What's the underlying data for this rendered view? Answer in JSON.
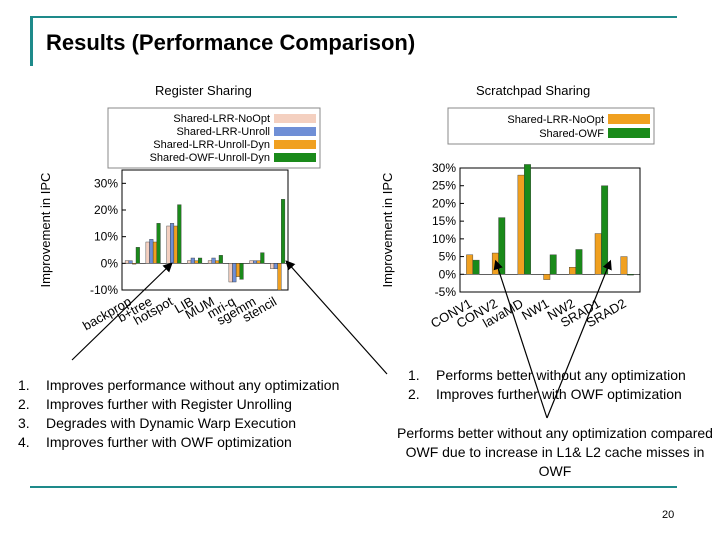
{
  "slide": {
    "title": "Results (Performance Comparison)",
    "page_number": "20",
    "accent_color": "#1e8a8a"
  },
  "left_panel": {
    "subtitle": "Register Sharing",
    "notes": [
      {
        "num": "1.",
        "text": "Improves performance without any optimization"
      },
      {
        "num": "2.",
        "text": "Improves further with Register Unrolling"
      },
      {
        "num": "3.",
        "text": "Degrades with Dynamic Warp Execution"
      },
      {
        "num": "4.",
        "text": "Improves further with OWF optimization"
      }
    ]
  },
  "right_panel": {
    "subtitle": "Scratchpad Sharing",
    "notes": [
      {
        "num": "1.",
        "text": "Performs better without any optimization"
      },
      {
        "num": "2.",
        "text": "Improves further with OWF optimization"
      }
    ],
    "extra_note": "Performs better without any optimization compared OWF due to increase in  L1& L2 cache misses in OWF"
  },
  "chart_data": [
    {
      "type": "bar",
      "title": "Register Sharing",
      "ylabel": "Improvement in IPC",
      "xlabel": "",
      "ylim": [
        -10,
        35
      ],
      "yticks": [
        -10,
        0,
        10,
        20,
        30
      ],
      "ytick_labels": [
        "-10%",
        "0%",
        "10%",
        "20%",
        "30%"
      ],
      "categories": [
        "backprop",
        "b+tree",
        "hotspot",
        "LIB",
        "MUM",
        "mri-q",
        "sgemm",
        "stencil"
      ],
      "series": [
        {
          "name": "Shared-LRR-NoOpt",
          "color": "#f4d0c0",
          "values": [
            1,
            8,
            14,
            1,
            1,
            -7,
            1,
            -2
          ]
        },
        {
          "name": "Shared-LRR-Unroll",
          "color": "#6f8fd6",
          "values": [
            1,
            9,
            15,
            2,
            2,
            -7,
            1,
            -2
          ]
        },
        {
          "name": "Shared-LRR-Unroll-Dyn",
          "color": "#f0a020",
          "values": [
            0,
            8,
            14,
            1,
            1,
            -5,
            1,
            -10
          ]
        },
        {
          "name": "Shared-OWF-Unroll-Dyn",
          "color": "#1a8a1a",
          "values": [
            6,
            15,
            22,
            2,
            3,
            -6,
            4,
            24
          ]
        }
      ]
    },
    {
      "type": "bar",
      "title": "Scratchpad Sharing",
      "ylabel": "Improvement in IPC",
      "xlabel": "",
      "ylim": [
        -5,
        30
      ],
      "yticks": [
        -5,
        0,
        5,
        10,
        15,
        20,
        25,
        30
      ],
      "ytick_labels": [
        "-5%",
        "0%",
        "5%",
        "10%",
        "15%",
        "20%",
        "25%",
        "30%"
      ],
      "categories": [
        "CONV1",
        "CONV2",
        "lavaMD",
        "NW1",
        "NW2",
        "SRAD1",
        "SRAD2"
      ],
      "series": [
        {
          "name": "Shared-LRR-NoOpt",
          "color": "#f0a020",
          "values": [
            5.5,
            6,
            28,
            -1.5,
            2,
            11.5,
            5
          ]
        },
        {
          "name": "Shared-OWF",
          "color": "#1a8a1a",
          "values": [
            4,
            16,
            31,
            5.5,
            7,
            25,
            0
          ]
        }
      ]
    }
  ]
}
